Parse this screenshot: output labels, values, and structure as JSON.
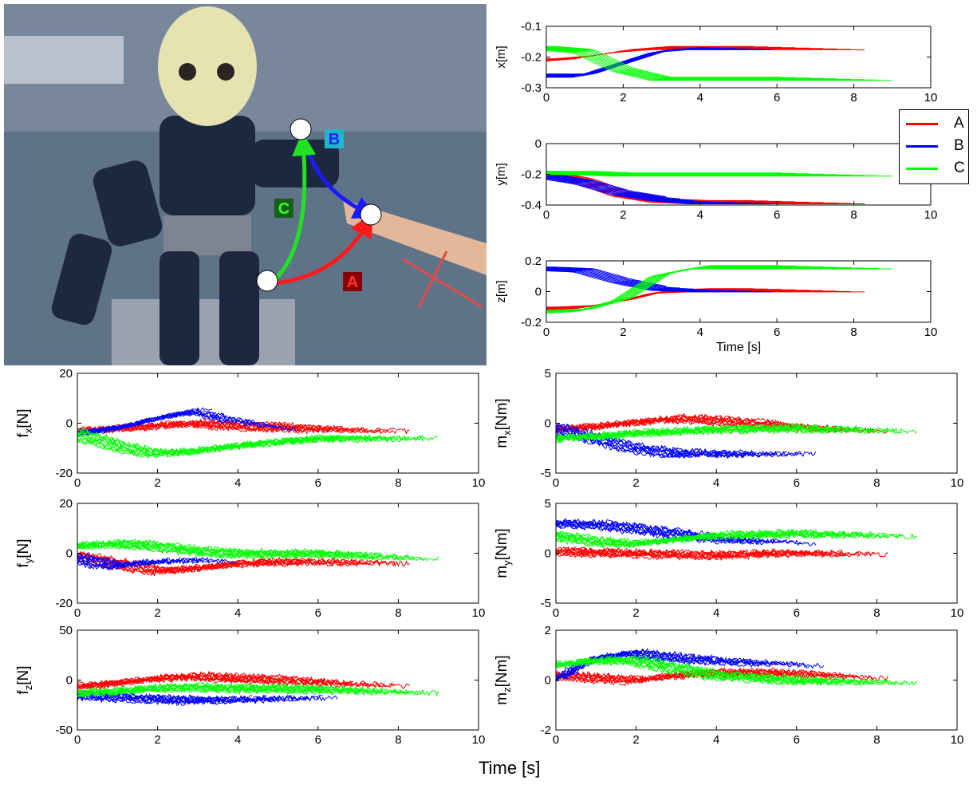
{
  "photo": {
    "marker_labels": [
      "A",
      "B",
      "C"
    ],
    "colors": {
      "A": "#ff1a1a",
      "B": "#1a1aff",
      "C": "#22e022"
    }
  },
  "legend": [
    {
      "name": "A",
      "color": "#ff0000"
    },
    {
      "name": "B",
      "color": "#0000ff"
    },
    {
      "name": "C",
      "color": "#00ff00"
    }
  ],
  "global_xlabel": "Time [s]",
  "chart_data": [
    {
      "type": "line",
      "id": "x",
      "ylabel": "x[m]",
      "xlabel": "",
      "xlim": [
        0,
        10
      ],
      "ylim": [
        -0.3,
        -0.1
      ],
      "xticks": [
        "0",
        "2",
        "4",
        "6",
        "8",
        "10"
      ],
      "yticks": [
        "-0.1",
        "-0.2",
        "-0.3"
      ],
      "grid": false,
      "series": [
        {
          "name": "A",
          "color": "#ff0000",
          "x": [
            0,
            1,
            2,
            3,
            4,
            6,
            8.3
          ],
          "y": [
            -0.21,
            -0.2,
            -0.18,
            -0.17,
            -0.17,
            -0.17,
            -0.17
          ]
        },
        {
          "name": "B",
          "color": "#0000ff",
          "x": [
            0,
            1,
            2,
            3,
            4,
            6
          ],
          "y": [
            -0.26,
            -0.26,
            -0.22,
            -0.18,
            -0.17,
            -0.17
          ]
        },
        {
          "name": "C",
          "color": "#00ff00",
          "x": [
            0,
            1,
            2,
            3,
            4,
            6,
            9
          ],
          "y": [
            -0.17,
            -0.18,
            -0.24,
            -0.27,
            -0.27,
            -0.27,
            -0.27
          ]
        }
      ]
    },
    {
      "type": "line",
      "id": "y",
      "ylabel": "y[m]",
      "xlabel": "",
      "xlim": [
        0,
        10
      ],
      "ylim": [
        -0.4,
        0
      ],
      "xticks": [
        "0",
        "2",
        "4",
        "6",
        "8",
        "10"
      ],
      "yticks": [
        "0",
        "-0.2",
        "-0.4"
      ],
      "grid": false,
      "series": [
        {
          "name": "A",
          "color": "#ff0000",
          "x": [
            0,
            1,
            2,
            3,
            4,
            6,
            8.3
          ],
          "y": [
            -0.19,
            -0.24,
            -0.33,
            -0.37,
            -0.38,
            -0.38,
            -0.38
          ]
        },
        {
          "name": "B",
          "color": "#0000ff",
          "x": [
            0,
            1,
            2,
            3,
            4,
            6
          ],
          "y": [
            -0.21,
            -0.25,
            -0.32,
            -0.36,
            -0.38,
            -0.38
          ]
        },
        {
          "name": "C",
          "color": "#00ff00",
          "x": [
            0,
            1,
            2,
            3,
            4,
            6,
            9
          ],
          "y": [
            -0.19,
            -0.19,
            -0.2,
            -0.2,
            -0.2,
            -0.2,
            -0.2
          ]
        }
      ]
    },
    {
      "type": "line",
      "id": "z",
      "ylabel": "z[m]",
      "xlabel": "Time [s]",
      "xlim": [
        0,
        10
      ],
      "ylim": [
        -0.2,
        0.2
      ],
      "xticks": [
        "0",
        "2",
        "4",
        "6",
        "8",
        "10"
      ],
      "yticks": [
        "0.2",
        "0",
        "-0.2"
      ],
      "grid": false,
      "series": [
        {
          "name": "A",
          "color": "#ff0000",
          "x": [
            0,
            1,
            2,
            3,
            4,
            6,
            8.3
          ],
          "y": [
            -0.11,
            -0.1,
            -0.06,
            0.0,
            0.01,
            0.01,
            0.01
          ]
        },
        {
          "name": "B",
          "color": "#0000ff",
          "x": [
            0,
            1,
            2,
            3,
            4,
            6
          ],
          "y": [
            0.15,
            0.14,
            0.07,
            0.02,
            0.01,
            0.01
          ]
        },
        {
          "name": "C",
          "color": "#00ff00",
          "x": [
            0,
            1,
            2,
            3,
            4,
            6,
            9
          ],
          "y": [
            -0.13,
            -0.12,
            -0.05,
            0.11,
            0.16,
            0.16,
            0.16
          ]
        }
      ]
    },
    {
      "type": "line",
      "id": "fx",
      "ylabel": "f_x[N]",
      "xlabel": "",
      "xlim": [
        0,
        10
      ],
      "ylim": [
        -20,
        20
      ],
      "xticks": [
        "0",
        "2",
        "4",
        "6",
        "8",
        "10"
      ],
      "yticks": [
        "20",
        "0",
        "-20"
      ],
      "grid": false,
      "series": [
        {
          "name": "A",
          "color": "#ff0000",
          "x": [
            0,
            1,
            2,
            3,
            4,
            6,
            8.3
          ],
          "y": [
            -3,
            -2,
            -1,
            0,
            -1,
            -2,
            -2
          ]
        },
        {
          "name": "B",
          "color": "#0000ff",
          "x": [
            0,
            1,
            2,
            3,
            4,
            5.5
          ],
          "y": [
            -4,
            -2,
            2,
            5,
            2,
            -1
          ]
        },
        {
          "name": "C",
          "color": "#00ff00",
          "x": [
            0,
            1,
            2,
            3,
            4,
            6,
            9
          ],
          "y": [
            -4,
            -9,
            -12,
            -11,
            -9,
            -6,
            -5
          ]
        }
      ]
    },
    {
      "type": "line",
      "id": "mx",
      "ylabel": "m_x[Nm]",
      "xlabel": "",
      "xlim": [
        0,
        10
      ],
      "ylim": [
        -5,
        5
      ],
      "xticks": [
        "0",
        "2",
        "4",
        "6",
        "8",
        "10"
      ],
      "yticks": [
        "5",
        "0",
        "-5"
      ],
      "grid": false,
      "series": [
        {
          "name": "A",
          "color": "#ff0000",
          "x": [
            0,
            1,
            2,
            3,
            4,
            6,
            8.3
          ],
          "y": [
            -0.6,
            -0.3,
            0.1,
            0.5,
            0.3,
            -0.3,
            -0.5
          ]
        },
        {
          "name": "B",
          "color": "#0000ff",
          "x": [
            0,
            1,
            2,
            3,
            4,
            6.5
          ],
          "y": [
            -0.5,
            -1.5,
            -2.5,
            -3,
            -3,
            -2.8
          ]
        },
        {
          "name": "C",
          "color": "#00ff00",
          "x": [
            0,
            1,
            2,
            3,
            4,
            6,
            9
          ],
          "y": [
            -1.5,
            -1.3,
            -1,
            -0.8,
            -0.6,
            -0.5,
            -0.5
          ]
        }
      ]
    },
    {
      "type": "line",
      "id": "fy",
      "ylabel": "f_y[N]",
      "xlabel": "",
      "xlim": [
        0,
        10
      ],
      "ylim": [
        -20,
        20
      ],
      "xticks": [
        "0",
        "2",
        "4",
        "6",
        "8",
        "10"
      ],
      "yticks": [
        "20",
        "0",
        "-20"
      ],
      "grid": false,
      "series": [
        {
          "name": "A",
          "color": "#ff0000",
          "x": [
            0,
            1,
            2,
            3,
            4,
            6,
            8.3
          ],
          "y": [
            -1,
            -4,
            -7,
            -6,
            -4,
            -3,
            -3
          ]
        },
        {
          "name": "B",
          "color": "#0000ff",
          "x": [
            0,
            1,
            2,
            3,
            4
          ],
          "y": [
            -2,
            -5,
            -3,
            -2,
            -2
          ]
        },
        {
          "name": "C",
          "color": "#00ff00",
          "x": [
            0,
            1,
            2,
            3,
            4,
            6,
            9
          ],
          "y": [
            3,
            4,
            3,
            1,
            0,
            0,
            -1
          ]
        }
      ]
    },
    {
      "type": "line",
      "id": "my",
      "ylabel": "m_y[Nm]",
      "xlabel": "",
      "xlim": [
        0,
        10
      ],
      "ylim": [
        -5,
        5
      ],
      "xticks": [
        "0",
        "2",
        "4",
        "6",
        "8",
        "10"
      ],
      "yticks": [
        "5",
        "0",
        "-5"
      ],
      "grid": false,
      "series": [
        {
          "name": "A",
          "color": "#ff0000",
          "x": [
            0,
            1,
            2,
            3,
            4,
            6,
            8.3
          ],
          "y": [
            0.2,
            0.1,
            0,
            -0.1,
            -0.2,
            0.1,
            0.2
          ]
        },
        {
          "name": "B",
          "color": "#0000ff",
          "x": [
            0,
            1,
            2,
            3,
            4,
            6.5
          ],
          "y": [
            3,
            2.9,
            2.5,
            2,
            1.5,
            1.3
          ]
        },
        {
          "name": "C",
          "color": "#00ff00",
          "x": [
            0,
            1,
            2,
            3,
            4,
            6,
            9
          ],
          "y": [
            1.8,
            1.2,
            1,
            1.4,
            1.8,
            2,
            2
          ]
        }
      ]
    },
    {
      "type": "line",
      "id": "fz",
      "ylabel": "f_z[N]",
      "xlabel": "",
      "xlim": [
        0,
        10
      ],
      "ylim": [
        -50,
        50
      ],
      "xticks": [
        "0",
        "2",
        "4",
        "6",
        "8",
        "10"
      ],
      "yticks": [
        "50",
        "0",
        "-50"
      ],
      "grid": false,
      "series": [
        {
          "name": "A",
          "color": "#ff0000",
          "x": [
            0,
            1,
            2,
            3,
            4,
            6,
            8.3
          ],
          "y": [
            -6,
            -3,
            2,
            4,
            2,
            -1,
            -3
          ]
        },
        {
          "name": "B",
          "color": "#0000ff",
          "x": [
            0,
            1,
            2,
            3,
            4,
            6.5
          ],
          "y": [
            -15,
            -17,
            -19,
            -20,
            -19,
            -15
          ]
        },
        {
          "name": "C",
          "color": "#00ff00",
          "x": [
            0,
            1,
            2,
            3,
            4,
            6,
            9
          ],
          "y": [
            -13,
            -11,
            -8,
            -7,
            -8,
            -9,
            -10
          ]
        }
      ]
    },
    {
      "type": "line",
      "id": "mz",
      "ylabel": "m_z[Nm]",
      "xlabel": "",
      "xlim": [
        0,
        10
      ],
      "ylim": [
        -2,
        2
      ],
      "xticks": [
        "0",
        "2",
        "4",
        "6",
        "8",
        "10"
      ],
      "yticks": [
        "2",
        "0",
        "-2"
      ],
      "grid": false,
      "series": [
        {
          "name": "A",
          "color": "#ff0000",
          "x": [
            0,
            1,
            2,
            3,
            4,
            6,
            8.3
          ],
          "y": [
            0.2,
            0.1,
            0,
            0.2,
            0.3,
            0.3,
            0.2
          ]
        },
        {
          "name": "B",
          "color": "#0000ff",
          "x": [
            0,
            1,
            2,
            3,
            4,
            6.7
          ],
          "y": [
            0,
            0.9,
            1.1,
            0.9,
            0.8,
            0.7
          ]
        },
        {
          "name": "C",
          "color": "#00ff00",
          "x": [
            0,
            1,
            2,
            3,
            4,
            6,
            9
          ],
          "y": [
            0.6,
            0.8,
            0.8,
            0.5,
            0.2,
            0,
            0
          ]
        }
      ]
    }
  ]
}
